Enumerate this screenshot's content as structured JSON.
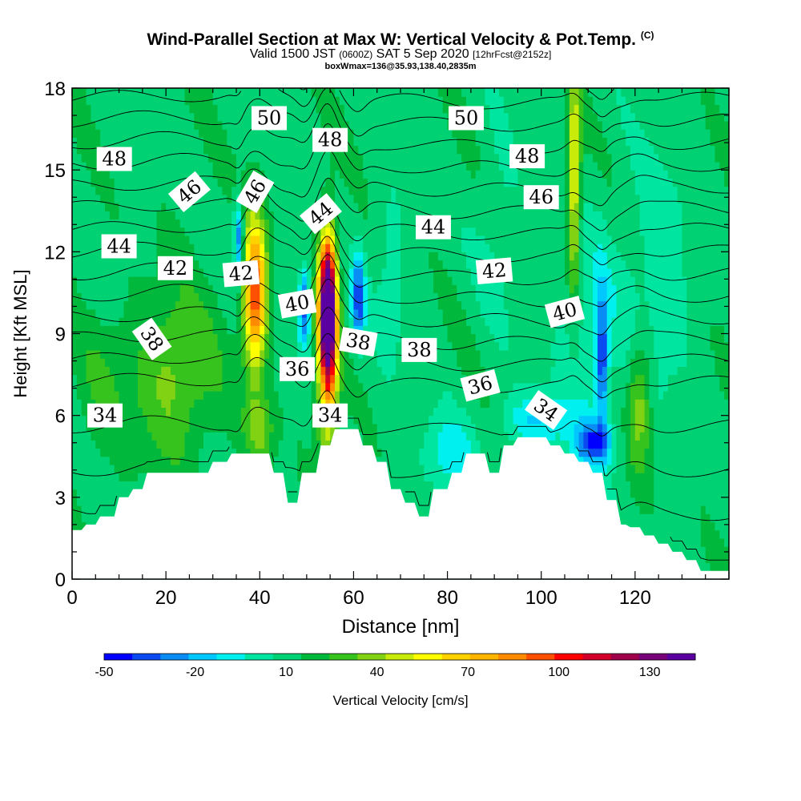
{
  "header": {
    "title_main": "Wind-Parallel Section at Max W: Vertical Velocity & Pot.Temp.",
    "title_mark": "(C)",
    "valid_a": "Valid 1500 JST",
    "valid_b": "(0600Z)",
    "valid_c": "SAT 5 Sep 2020",
    "valid_d": "[12hrFcst@2152z]",
    "subtitle2": "boxWmax=136@35.93,138.40,2835m"
  },
  "chart_data": {
    "type": "heatmap",
    "xlabel": "Distance [nm]",
    "ylabel": "Height [Kft MSL]",
    "xlim": [
      0,
      140
    ],
    "ylim": [
      0,
      18
    ],
    "x_ticks": [
      0,
      20,
      40,
      60,
      80,
      100,
      120
    ],
    "y_ticks": [
      0,
      3,
      6,
      9,
      12,
      15,
      18
    ],
    "colorbar": {
      "label": "Vertical Velocity [cm/s]",
      "tick_labels": [
        "-50",
        "-20",
        "10",
        "40",
        "70",
        "100",
        "130"
      ],
      "range": [
        -50,
        145
      ],
      "colors": [
        "#0000ff",
        "#0a4af0",
        "#0a8cf5",
        "#00c8ff",
        "#00f0f0",
        "#00e6a0",
        "#00d273",
        "#00b93c",
        "#37c31e",
        "#82d214",
        "#c8eb0a",
        "#ffff00",
        "#ffd200",
        "#ffb400",
        "#ff8c00",
        "#ff5000",
        "#ff0000",
        "#d20028",
        "#a0004b",
        "#780078",
        "#5a00a0"
      ]
    },
    "terrain_kft": [
      [
        0,
        1.8
      ],
      [
        2,
        1.8
      ],
      [
        3,
        2
      ],
      [
        5,
        2
      ],
      [
        6,
        2.3
      ],
      [
        9,
        2.3
      ],
      [
        10,
        3
      ],
      [
        12,
        3
      ],
      [
        13,
        3.3
      ],
      [
        15,
        3.3
      ],
      [
        16,
        3.9
      ],
      [
        29,
        3.9
      ],
      [
        30,
        4.3
      ],
      [
        33,
        4.3
      ],
      [
        34,
        4.6
      ],
      [
        42,
        4.6
      ],
      [
        43,
        3.9
      ],
      [
        45,
        3.9
      ],
      [
        46,
        2.8
      ],
      [
        48,
        2.8
      ],
      [
        49,
        3.9
      ],
      [
        52,
        3.9
      ],
      [
        53,
        4.9
      ],
      [
        55,
        4.9
      ],
      [
        56,
        5.5
      ],
      [
        61,
        5.5
      ],
      [
        62,
        4.9
      ],
      [
        64,
        4.9
      ],
      [
        65,
        4.3
      ],
      [
        67,
        4.3
      ],
      [
        68,
        3.3
      ],
      [
        70,
        3.3
      ],
      [
        71,
        2.8
      ],
      [
        73,
        2.8
      ],
      [
        74,
        2.3
      ],
      [
        76,
        2.3
      ],
      [
        77,
        3.3
      ],
      [
        80,
        3.3
      ],
      [
        81,
        3.9
      ],
      [
        83,
        3.9
      ],
      [
        84,
        4.6
      ],
      [
        88,
        4.6
      ],
      [
        89,
        3.9
      ],
      [
        91,
        3.9
      ],
      [
        92,
        4.9
      ],
      [
        94,
        4.9
      ],
      [
        95,
        5.2
      ],
      [
        101,
        5.2
      ],
      [
        102,
        4.9
      ],
      [
        104,
        4.9
      ],
      [
        105,
        4.6
      ],
      [
        107,
        4.6
      ],
      [
        108,
        4.3
      ],
      [
        110,
        4.3
      ],
      [
        111,
        3.9
      ],
      [
        113,
        3.9
      ],
      [
        114,
        2.9
      ],
      [
        116,
        2.9
      ],
      [
        117,
        2
      ],
      [
        118,
        2
      ],
      [
        119,
        1.9
      ],
      [
        121,
        1.9
      ],
      [
        122,
        1.6
      ],
      [
        124,
        1.6
      ],
      [
        125,
        1.3
      ],
      [
        127,
        1.3
      ],
      [
        128,
        1
      ],
      [
        130,
        1
      ],
      [
        131,
        0.7
      ],
      [
        133,
        0.7
      ],
      [
        134,
        0.3
      ],
      [
        140,
        0.3
      ]
    ],
    "theta_levels": [
      33,
      34,
      35,
      36,
      37,
      38,
      39,
      40,
      41,
      42,
      43,
      44,
      45,
      46,
      47,
      48,
      49,
      50,
      51
    ],
    "theta_labels": [
      {
        "text": "34",
        "x": 7,
        "y": 6.0,
        "rot": 0
      },
      {
        "text": "34",
        "x": 55,
        "y": 6.0,
        "rot": 0
      },
      {
        "text": "34",
        "x": 101,
        "y": 6.2,
        "rot": 35
      },
      {
        "text": "36",
        "x": 48,
        "y": 7.7,
        "rot": 0
      },
      {
        "text": "36",
        "x": 87,
        "y": 7.1,
        "rot": -15
      },
      {
        "text": "38",
        "x": 17,
        "y": 8.8,
        "rot": 55
      },
      {
        "text": "38",
        "x": 61,
        "y": 8.7,
        "rot": 10
      },
      {
        "text": "38",
        "x": 74,
        "y": 8.4,
        "rot": 0
      },
      {
        "text": "40",
        "x": 48,
        "y": 10.1,
        "rot": -10
      },
      {
        "text": "40",
        "x": 105,
        "y": 9.8,
        "rot": -15
      },
      {
        "text": "42",
        "x": 22,
        "y": 11.4,
        "rot": 0
      },
      {
        "text": "42",
        "x": 36,
        "y": 11.2,
        "rot": -5
      },
      {
        "text": "42",
        "x": 90,
        "y": 11.3,
        "rot": -5
      },
      {
        "text": "44",
        "x": 10,
        "y": 12.2,
        "rot": 0
      },
      {
        "text": "44",
        "x": 53,
        "y": 13.4,
        "rot": -40
      },
      {
        "text": "44",
        "x": 77,
        "y": 12.9,
        "rot": 0
      },
      {
        "text": "46",
        "x": 25,
        "y": 14.2,
        "rot": -40
      },
      {
        "text": "46",
        "x": 39,
        "y": 14.2,
        "rot": -60
      },
      {
        "text": "46",
        "x": 100,
        "y": 14.0,
        "rot": 0
      },
      {
        "text": "48",
        "x": 9,
        "y": 15.4,
        "rot": 0
      },
      {
        "text": "48",
        "x": 55,
        "y": 16.1,
        "rot": 0
      },
      {
        "text": "48",
        "x": 97,
        "y": 15.5,
        "rot": 0
      },
      {
        "text": "50",
        "x": 42,
        "y": 16.9,
        "rot": 0
      },
      {
        "text": "50",
        "x": 84,
        "y": 16.9,
        "rot": 0
      }
    ],
    "w_features": [
      {
        "x": 54.5,
        "y": 10,
        "sx": 1.8,
        "sy": 2.6,
        "amp": 145
      },
      {
        "x": 54.5,
        "y": 7.5,
        "sx": 2.2,
        "sy": 3.5,
        "amp": 50
      },
      {
        "x": 39,
        "y": 10.5,
        "sx": 2.4,
        "sy": 2.8,
        "amp": 85
      },
      {
        "x": 107,
        "y": 14.5,
        "sx": 1.4,
        "sy": 4.5,
        "amp": 45
      },
      {
        "x": 22,
        "y": 7.5,
        "sx": 9,
        "sy": 3,
        "amp": 25
      },
      {
        "x": 40,
        "y": 5.5,
        "sx": 3,
        "sy": 1.2,
        "amp": 25
      },
      {
        "x": 121,
        "y": 6.5,
        "sx": 2.5,
        "sy": 2.5,
        "amp": 30
      },
      {
        "x": 6,
        "y": 7,
        "sx": 6,
        "sy": 2.5,
        "amp": 10
      },
      {
        "x": 49.5,
        "y": 10,
        "sx": 1.3,
        "sy": 1.5,
        "amp": -45
      },
      {
        "x": 61,
        "y": 10.3,
        "sx": 1.4,
        "sy": 1.6,
        "amp": -50
      },
      {
        "x": 35.5,
        "y": 12.5,
        "sx": 1,
        "sy": 1.3,
        "amp": -45
      },
      {
        "x": 113,
        "y": 8,
        "sx": 1.2,
        "sy": 2.5,
        "amp": -45
      },
      {
        "x": 111,
        "y": 5,
        "sx": 4,
        "sy": 0.8,
        "amp": -45
      },
      {
        "x": 99,
        "y": 5.8,
        "sx": 7,
        "sy": 1.0,
        "amp": -25
      },
      {
        "x": 80,
        "y": 4.5,
        "sx": 6,
        "sy": 1.5,
        "amp": -20
      },
      {
        "x": 110,
        "y": 9,
        "sx": 7,
        "sy": 4,
        "amp": -15
      },
      {
        "x": 125,
        "y": 11,
        "sx": 8,
        "sy": 5,
        "amp": -12
      },
      {
        "x": 68,
        "y": 11,
        "sx": 4,
        "sy": 4,
        "amp": -10
      },
      {
        "x": 91,
        "y": 13,
        "sx": 5,
        "sy": 4,
        "amp": -8
      }
    ]
  }
}
